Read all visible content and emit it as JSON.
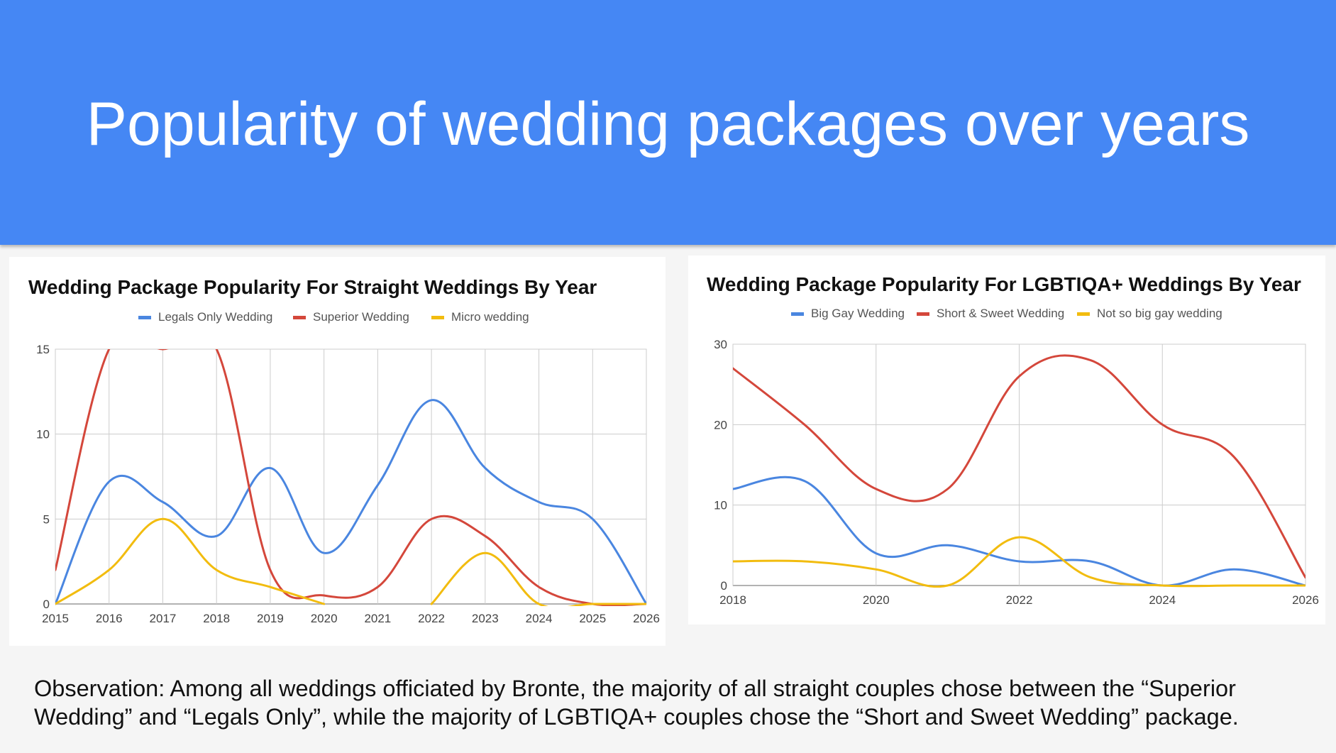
{
  "slide": {
    "title": "Popularity of wedding packages over years",
    "observation": "Observation: Among all weddings officiated by Bronte, the majority of all straight couples chose between the “Superior Wedding” and “Legals Only”, while the majority of LGBTIQA+ couples chose the “Short and Sweet Wedding” package."
  },
  "chart_data": [
    {
      "type": "line",
      "title": "Wedding Package Popularity For Straight Weddings By Year",
      "x": [
        2015,
        2016,
        2017,
        2018,
        2019,
        2020,
        2021,
        2022,
        2023,
        2024,
        2025,
        2026
      ],
      "x_ticks": [
        "2015",
        "2016",
        "2017",
        "2018",
        "2019",
        "2020",
        "2021",
        "2022",
        "2023",
        "2024",
        "2025",
        "2026"
      ],
      "y_ticks": [
        "0",
        "5",
        "10",
        "15"
      ],
      "ylim": [
        0,
        15
      ],
      "xlim": [
        2015,
        2026
      ],
      "grid": true,
      "legend_position": "top",
      "series": [
        {
          "name": "Legals Only Wedding",
          "color": "#4a86e0",
          "values": [
            0,
            7.2,
            6,
            4,
            8,
            3,
            7,
            12,
            8,
            6,
            5,
            0
          ]
        },
        {
          "name": "Superior Wedding",
          "color": "#d4473b",
          "values": [
            2,
            15,
            15,
            15,
            2,
            0.5,
            1,
            5,
            4,
            1,
            0,
            0
          ]
        },
        {
          "name": "Micro wedding",
          "color": "#f2bc0f",
          "values": [
            0,
            2,
            5,
            2,
            1,
            0,
            null,
            0,
            3,
            0,
            0,
            0
          ]
        }
      ]
    },
    {
      "type": "line",
      "title": "Wedding Package Popularity For LGBTIQA+ Weddings By Year",
      "x": [
        2018,
        2019,
        2020,
        2021,
        2022,
        2023,
        2024,
        2025,
        2026
      ],
      "x_ticks": [
        "2018",
        "2020",
        "2022",
        "2024",
        "2026"
      ],
      "y_ticks": [
        "0",
        "10",
        "20",
        "30"
      ],
      "ylim": [
        0,
        30
      ],
      "xlim": [
        2018,
        2026
      ],
      "grid": true,
      "legend_position": "top",
      "series": [
        {
          "name": "Big Gay Wedding",
          "color": "#4a86e0",
          "values": [
            12,
            13,
            4,
            5,
            3,
            3,
            0,
            2,
            0
          ]
        },
        {
          "name": "Short & Sweet Wedding",
          "color": "#d4473b",
          "values": [
            27,
            20,
            12,
            12,
            26,
            28,
            20,
            16,
            1
          ]
        },
        {
          "name": "Not so big gay wedding",
          "color": "#f2bc0f",
          "values": [
            3,
            3,
            2,
            0,
            6,
            1,
            0,
            0,
            0
          ]
        }
      ]
    }
  ]
}
